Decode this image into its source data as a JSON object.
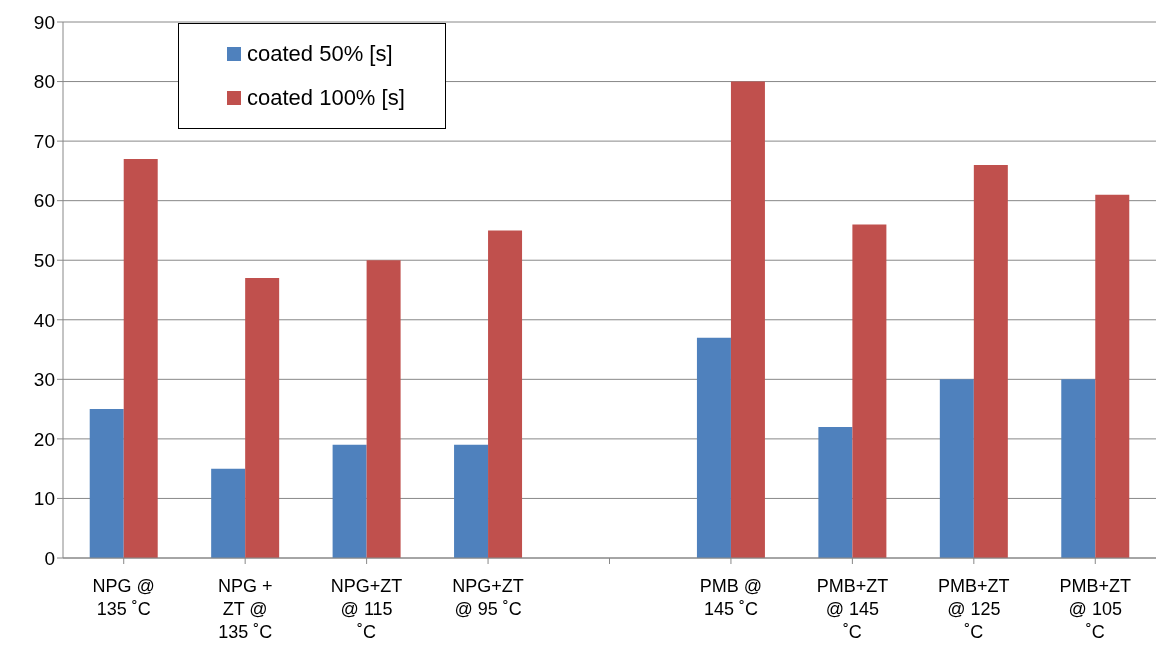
{
  "chart_data": {
    "type": "bar",
    "categories": [
      "NPG @ 135 ˚C",
      "NPG + ZT @ 135 ˚C",
      "NPG+ZT @ 115 ˚C",
      "NPG+ZT @ 95 ˚C",
      null,
      "PMB  @ 145 ˚C",
      "PMB+ZT @ 145 ˚C",
      "PMB+ZT @ 125 ˚C",
      "PMB+ZT @ 105 ˚C"
    ],
    "series": [
      {
        "name": "coated 50% [s]",
        "color": "#4f81bd",
        "values": [
          25,
          15,
          19,
          19,
          null,
          37,
          22,
          30,
          30
        ]
      },
      {
        "name": "coated 100% [s]",
        "color": "#c0504d",
        "values": [
          67,
          47,
          50,
          55,
          null,
          80,
          56,
          66,
          61
        ]
      }
    ],
    "ylim": [
      0,
      90
    ],
    "yticks": [
      0,
      10,
      20,
      30,
      40,
      50,
      60,
      70,
      80,
      90
    ],
    "grid": "y",
    "legend": "top left"
  }
}
